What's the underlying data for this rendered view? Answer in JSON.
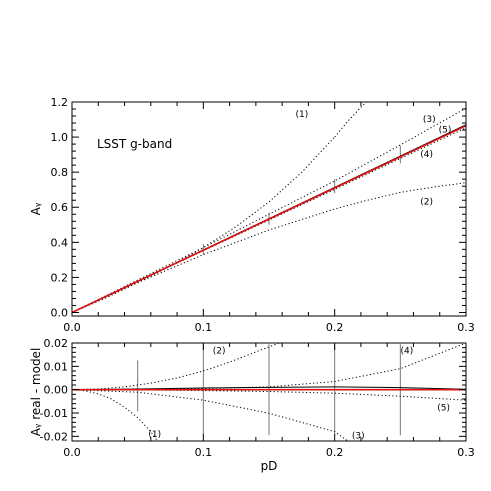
{
  "chart_data": [
    {
      "type": "line",
      "annotation": "LSST g-band",
      "xlabel": "",
      "ylabel": "Aᵧ",
      "xlim": [
        0.0,
        0.3
      ],
      "ylim": [
        -0.02,
        1.2
      ],
      "xticks": [
        "0.0",
        "0.1",
        "0.2",
        "0.3"
      ],
      "yticks": [
        "0.0",
        "0.2",
        "0.4",
        "0.6",
        "0.8",
        "1.0",
        "1.2"
      ],
      "x_tick_values": [
        0.0,
        0.1,
        0.2,
        0.3
      ],
      "y_tick_values": [
        0.0,
        0.2,
        0.4,
        0.6,
        0.8,
        1.0,
        1.2
      ],
      "series": [
        {
          "label": "(1)",
          "style": "dotted",
          "color": "#000000",
          "x": [
            0,
            0.025,
            0.05,
            0.075,
            0.1,
            0.125,
            0.15,
            0.175,
            0.2
          ],
          "y": [
            0,
            0.08,
            0.17,
            0.265,
            0.37,
            0.49,
            0.63,
            0.8,
            1.0
          ]
        },
        {
          "label": "(1)",
          "style": "dotted",
          "color": "#000000",
          "x": [
            0.2,
            0.21,
            0.22,
            0.227
          ],
          "y": [
            1.0,
            1.09,
            1.17,
            1.22
          ]
        },
        {
          "label": "(2)",
          "style": "dotted",
          "color": "#000000",
          "x": [
            0,
            0.025,
            0.05,
            0.075,
            0.1,
            0.125,
            0.15,
            0.175,
            0.2,
            0.225,
            0.25,
            0.275,
            0.3
          ],
          "y": [
            0,
            0.087,
            0.17,
            0.25,
            0.33,
            0.4,
            0.47,
            0.53,
            0.59,
            0.64,
            0.685,
            0.715,
            0.74
          ]
        },
        {
          "label": "(3)",
          "style": "dotted",
          "color": "#000000",
          "x": [
            0,
            0.05,
            0.1,
            0.15,
            0.2,
            0.25,
            0.3
          ],
          "y": [
            0,
            0.185,
            0.37,
            0.56,
            0.75,
            0.955,
            1.165
          ]
        },
        {
          "label": "(4)",
          "style": "dotted",
          "color": "#000000",
          "x": [
            0,
            0.05,
            0.1,
            0.15,
            0.2,
            0.25,
            0.3
          ],
          "y": [
            0,
            0.176,
            0.352,
            0.527,
            0.702,
            0.878,
            1.053
          ]
        },
        {
          "label": "(5)",
          "style": "dotted",
          "color": "#000000",
          "x": [
            0,
            0.3
          ],
          "y": [
            0,
            1.07
          ]
        },
        {
          "label": "",
          "style": "solid",
          "color": "#000000",
          "x": [
            0,
            0.3
          ],
          "y": [
            0,
            1.07
          ]
        },
        {
          "label": "",
          "style": "solid",
          "color": "#dd1111",
          "x": [
            0,
            0.3
          ],
          "y": [
            0,
            1.065
          ]
        }
      ],
      "curve_labels": [
        {
          "text": "(1)",
          "x": 0.175,
          "y": 1.13
        },
        {
          "text": "(3)",
          "x": 0.272,
          "y": 1.1
        },
        {
          "text": "(5)",
          "x": 0.284,
          "y": 1.04
        },
        {
          "text": "(4)",
          "x": 0.27,
          "y": 0.9
        },
        {
          "text": "(2)",
          "x": 0.27,
          "y": 0.63
        }
      ],
      "error_bars": [
        {
          "x": 0.1,
          "ylow": 0.33,
          "yhigh": 0.39
        },
        {
          "x": 0.15,
          "ylow": 0.5,
          "yhigh": 0.57
        },
        {
          "x": 0.2,
          "ylow": 0.68,
          "yhigh": 0.76
        },
        {
          "x": 0.25,
          "ylow": 0.85,
          "yhigh": 0.95
        }
      ]
    },
    {
      "type": "line",
      "xlabel": "pD",
      "ylabel": "Aᵧ real - model",
      "xlim": [
        0.0,
        0.3
      ],
      "ylim": [
        -0.022,
        0.02
      ],
      "xticks": [
        "0.0",
        "0.1",
        "0.2",
        "0.3"
      ],
      "yticks": [
        "0.02",
        "0.01",
        "0.00",
        "-0.01",
        "-0.02"
      ],
      "x_tick_values": [
        0.0,
        0.1,
        0.2,
        0.3
      ],
      "y_tick_values": [
        0.02,
        0.01,
        0.0,
        -0.01,
        -0.02
      ],
      "series": [
        {
          "label": "(1)",
          "style": "dotted",
          "color": "#000000",
          "x": [
            0,
            0.01,
            0.02,
            0.03,
            0.04,
            0.05,
            0.06,
            0.065
          ],
          "y": [
            0,
            -0.0005,
            -0.0018,
            -0.004,
            -0.0075,
            -0.012,
            -0.018,
            -0.022
          ]
        },
        {
          "label": "(2)",
          "style": "dotted",
          "color": "#000000",
          "x": [
            0,
            0.02,
            0.04,
            0.06,
            0.08,
            0.1,
            0.12,
            0.14,
            0.16
          ],
          "y": [
            0,
            0.0003,
            0.0012,
            0.0028,
            0.005,
            0.008,
            0.0118,
            0.0162,
            0.0205
          ]
        },
        {
          "label": "(3)",
          "style": "dotted",
          "color": "#000000",
          "x": [
            0,
            0.05,
            0.1,
            0.15,
            0.2,
            0.21
          ],
          "y": [
            0,
            -0.0011,
            -0.0045,
            -0.0101,
            -0.018,
            -0.022
          ]
        },
        {
          "label": "(4)",
          "style": "dotted",
          "color": "#000000",
          "x": [
            0,
            0.05,
            0.1,
            0.15,
            0.2,
            0.25,
            0.3
          ],
          "y": [
            0,
            0.0001,
            0.0005,
            0.0012,
            0.0035,
            0.009,
            0.02
          ]
        },
        {
          "label": "(5)",
          "style": "dotted",
          "color": "#000000",
          "x": [
            0,
            0.05,
            0.1,
            0.15,
            0.2,
            0.25,
            0.3
          ],
          "y": [
            0,
            -0.0001,
            -0.0004,
            -0.0008,
            -0.0015,
            -0.0028,
            -0.0045
          ]
        },
        {
          "label": "",
          "style": "solid",
          "color": "#000000",
          "x": [
            0,
            0.05,
            0.1,
            0.15,
            0.2,
            0.25,
            0.3
          ],
          "y": [
            0,
            0.0003,
            0.0007,
            0.001,
            0.0012,
            0.0009,
            0.0002
          ]
        },
        {
          "label": "",
          "style": "solid",
          "color": "#dd1111",
          "x": [
            0,
            0.3
          ],
          "y": [
            0,
            0
          ]
        }
      ],
      "curve_labels": [
        {
          "text": "(2)",
          "x": 0.112,
          "y": 0.0165
        },
        {
          "text": "(4)",
          "x": 0.255,
          "y": 0.0165
        },
        {
          "text": "(5)",
          "x": 0.283,
          "y": -0.0078
        },
        {
          "text": "(1)",
          "x": 0.063,
          "y": -0.0193
        },
        {
          "text": "(3)",
          "x": 0.218,
          "y": -0.0198
        }
      ],
      "error_bars": [
        {
          "x": 0.05,
          "ylow": -0.0093,
          "yhigh": 0.0125
        },
        {
          "x": 0.1,
          "ylow": -0.0195,
          "yhigh": 0.0195
        },
        {
          "x": 0.15,
          "ylow": -0.0195,
          "yhigh": 0.0195
        },
        {
          "x": 0.2,
          "ylow": -0.0195,
          "yhigh": 0.0195
        },
        {
          "x": 0.25,
          "ylow": -0.0195,
          "yhigh": 0.0195
        }
      ]
    }
  ]
}
